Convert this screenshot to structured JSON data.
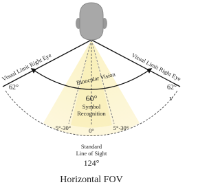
{
  "diagram": {
    "title": "Horizontal FOV",
    "left_limit": "Visual Limit Right Eye",
    "right_limit": "Visual Limit Right Eye",
    "binocular": "Binocular Vision",
    "left_angle": "62°",
    "right_angle": "62°",
    "right_marker": "v",
    "symbol_angle": "60°",
    "symbol_label": [
      "Symbol",
      "Recognition"
    ],
    "left_range": "5°-30°",
    "right_range": "5°-30°",
    "center_angle": "0°",
    "sight_label": [
      "Standard",
      "Line of Sight"
    ],
    "total_angle": "124°"
  }
}
